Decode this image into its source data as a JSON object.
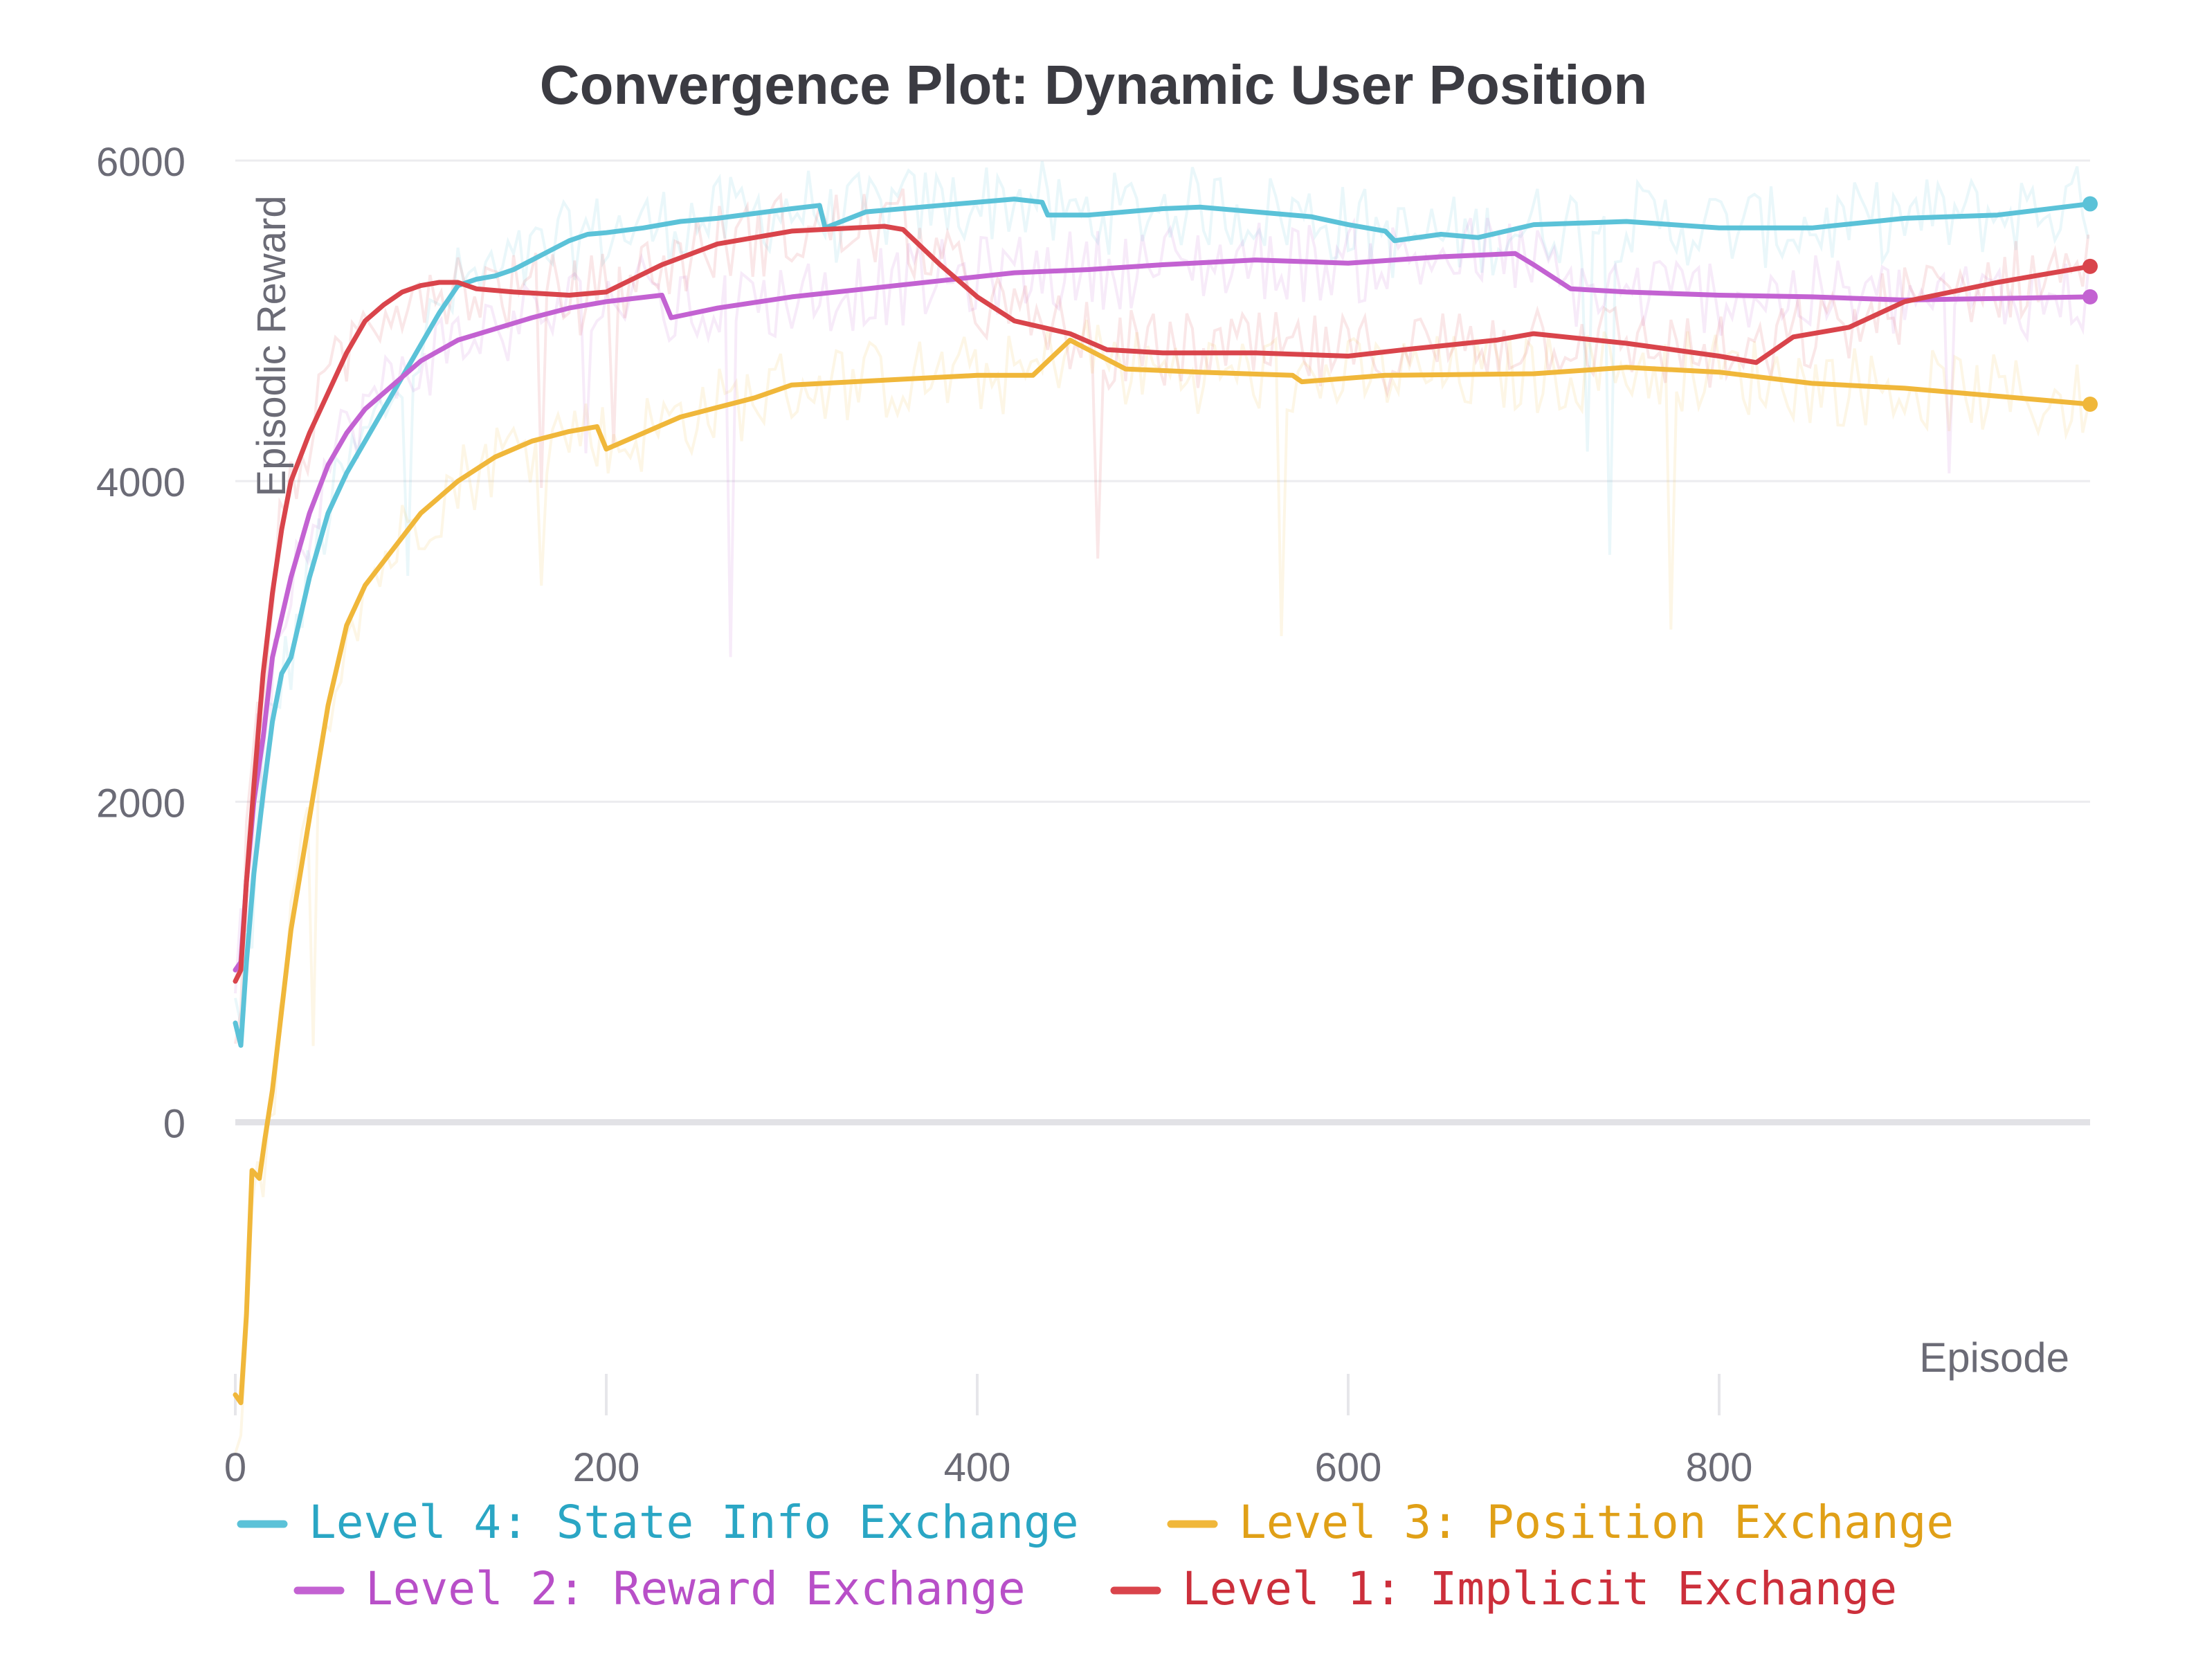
{
  "chart_data": {
    "type": "line",
    "title": "Convergence Plot: Dynamic User Position",
    "xlabel": "Episode",
    "ylabel": "Episodic Reward",
    "xlim": [
      0,
      1000
    ],
    "ylim": [
      -1850,
      6000
    ],
    "x_ticks": [
      "0",
      "200",
      "400",
      "600",
      "800"
    ],
    "y_ticks": [
      "0",
      "2000",
      "4000",
      "6000"
    ],
    "grid": true,
    "legend_position": "bottom",
    "series": [
      {
        "name": "Level 4: State Info Exchange",
        "color": "#5bc2d8",
        "text_color": "#2aa6c4",
        "end_value": 5730,
        "points": [
          [
            0,
            620
          ],
          [
            3,
            480
          ],
          [
            6,
            1000
          ],
          [
            10,
            1550
          ],
          [
            15,
            2050
          ],
          [
            20,
            2500
          ],
          [
            25,
            2800
          ],
          [
            30,
            2900
          ],
          [
            40,
            3400
          ],
          [
            50,
            3800
          ],
          [
            60,
            4050
          ],
          [
            70,
            4250
          ],
          [
            80,
            4450
          ],
          [
            90,
            4650
          ],
          [
            100,
            4850
          ],
          [
            110,
            5050
          ],
          [
            120,
            5220
          ],
          [
            130,
            5260
          ],
          [
            140,
            5280
          ],
          [
            150,
            5320
          ],
          [
            160,
            5380
          ],
          [
            170,
            5440
          ],
          [
            180,
            5500
          ],
          [
            190,
            5540
          ],
          [
            200,
            5550
          ],
          [
            220,
            5580
          ],
          [
            240,
            5620
          ],
          [
            260,
            5640
          ],
          [
            280,
            5670
          ],
          [
            300,
            5700
          ],
          [
            315,
            5720
          ],
          [
            318,
            5580
          ],
          [
            340,
            5680
          ],
          [
            380,
            5720
          ],
          [
            420,
            5760
          ],
          [
            435,
            5740
          ],
          [
            438,
            5660
          ],
          [
            460,
            5660
          ],
          [
            500,
            5700
          ],
          [
            520,
            5710
          ],
          [
            550,
            5680
          ],
          [
            580,
            5650
          ],
          [
            600,
            5600
          ],
          [
            620,
            5560
          ],
          [
            625,
            5500
          ],
          [
            650,
            5540
          ],
          [
            670,
            5520
          ],
          [
            700,
            5600
          ],
          [
            750,
            5620
          ],
          [
            800,
            5580
          ],
          [
            850,
            5580
          ],
          [
            900,
            5640
          ],
          [
            950,
            5660
          ],
          [
            1000,
            5730
          ]
        ]
      },
      {
        "name": "Level 3: Position Exchange",
        "color": "#f0b73a",
        "text_color": "#e0a017",
        "end_value": 4480,
        "points": [
          [
            0,
            -1700
          ],
          [
            3,
            -1750
          ],
          [
            6,
            -1200
          ],
          [
            9,
            -300
          ],
          [
            13,
            -350
          ],
          [
            16,
            -100
          ],
          [
            20,
            200
          ],
          [
            25,
            700
          ],
          [
            30,
            1200
          ],
          [
            40,
            1900
          ],
          [
            50,
            2600
          ],
          [
            60,
            3100
          ],
          [
            70,
            3350
          ],
          [
            80,
            3500
          ],
          [
            90,
            3650
          ],
          [
            100,
            3800
          ],
          [
            120,
            4000
          ],
          [
            140,
            4150
          ],
          [
            160,
            4250
          ],
          [
            180,
            4310
          ],
          [
            195,
            4340
          ],
          [
            200,
            4200
          ],
          [
            210,
            4250
          ],
          [
            240,
            4400
          ],
          [
            280,
            4520
          ],
          [
            300,
            4600
          ],
          [
            350,
            4630
          ],
          [
            400,
            4660
          ],
          [
            430,
            4660
          ],
          [
            450,
            4880
          ],
          [
            460,
            4820
          ],
          [
            480,
            4700
          ],
          [
            520,
            4680
          ],
          [
            570,
            4660
          ],
          [
            575,
            4620
          ],
          [
            620,
            4660
          ],
          [
            700,
            4670
          ],
          [
            750,
            4710
          ],
          [
            800,
            4680
          ],
          [
            850,
            4610
          ],
          [
            900,
            4580
          ],
          [
            950,
            4530
          ],
          [
            1000,
            4480
          ]
        ]
      },
      {
        "name": "Level 2: Reward Exchange",
        "color": "#c362d2",
        "text_color": "#b84fc8",
        "end_value": 5150,
        "points": [
          [
            0,
            950
          ],
          [
            3,
            1000
          ],
          [
            6,
            1500
          ],
          [
            10,
            2000
          ],
          [
            15,
            2400
          ],
          [
            20,
            2900
          ],
          [
            30,
            3400
          ],
          [
            40,
            3800
          ],
          [
            50,
            4100
          ],
          [
            60,
            4300
          ],
          [
            70,
            4450
          ],
          [
            80,
            4550
          ],
          [
            100,
            4750
          ],
          [
            120,
            4880
          ],
          [
            140,
            4950
          ],
          [
            160,
            5020
          ],
          [
            180,
            5080
          ],
          [
            200,
            5120
          ],
          [
            230,
            5160
          ],
          [
            235,
            5020
          ],
          [
            260,
            5080
          ],
          [
            300,
            5150
          ],
          [
            340,
            5200
          ],
          [
            380,
            5250
          ],
          [
            420,
            5300
          ],
          [
            460,
            5320
          ],
          [
            500,
            5350
          ],
          [
            550,
            5380
          ],
          [
            600,
            5360
          ],
          [
            650,
            5400
          ],
          [
            690,
            5420
          ],
          [
            700,
            5350
          ],
          [
            720,
            5200
          ],
          [
            750,
            5180
          ],
          [
            800,
            5160
          ],
          [
            850,
            5150
          ],
          [
            900,
            5130
          ],
          [
            950,
            5140
          ],
          [
            1000,
            5150
          ]
        ]
      },
      {
        "name": "Level 1: Implicit Exchange",
        "color": "#d9444b",
        "text_color": "#cc2f3b",
        "end_value": 5340,
        "points": [
          [
            0,
            880
          ],
          [
            3,
            950
          ],
          [
            6,
            1500
          ],
          [
            10,
            2100
          ],
          [
            15,
            2800
          ],
          [
            20,
            3300
          ],
          [
            25,
            3700
          ],
          [
            30,
            4000
          ],
          [
            40,
            4300
          ],
          [
            50,
            4550
          ],
          [
            60,
            4800
          ],
          [
            70,
            5000
          ],
          [
            80,
            5100
          ],
          [
            90,
            5180
          ],
          [
            100,
            5220
          ],
          [
            110,
            5240
          ],
          [
            120,
            5240
          ],
          [
            130,
            5200
          ],
          [
            150,
            5180
          ],
          [
            180,
            5160
          ],
          [
            200,
            5180
          ],
          [
            230,
            5350
          ],
          [
            260,
            5480
          ],
          [
            300,
            5560
          ],
          [
            350,
            5590
          ],
          [
            360,
            5570
          ],
          [
            380,
            5350
          ],
          [
            400,
            5150
          ],
          [
            420,
            5000
          ],
          [
            450,
            4920
          ],
          [
            470,
            4820
          ],
          [
            500,
            4800
          ],
          [
            550,
            4800
          ],
          [
            600,
            4780
          ],
          [
            630,
            4820
          ],
          [
            680,
            4880
          ],
          [
            700,
            4920
          ],
          [
            750,
            4860
          ],
          [
            800,
            4780
          ],
          [
            820,
            4740
          ],
          [
            840,
            4900
          ],
          [
            870,
            4960
          ],
          [
            900,
            5120
          ],
          [
            950,
            5240
          ],
          [
            1000,
            5340
          ]
        ]
      }
    ]
  }
}
